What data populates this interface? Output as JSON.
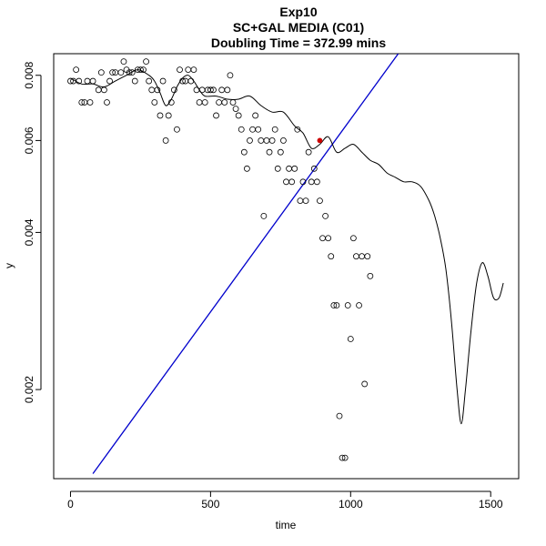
{
  "chart_data": {
    "type": "scatter",
    "title": "Exp10",
    "subtitle": "SC+GAL MEDIA (C01)",
    "subtitle2": "Doubling Time = 372.99 mins",
    "xlabel": "time",
    "ylabel": "y",
    "y_scale": "log",
    "xlim": [
      -60,
      1600
    ],
    "ylim": [
      0.00135,
      0.0088
    ],
    "x_ticks": [
      0,
      500,
      1000,
      1500
    ],
    "x_tick_labels": [
      "0",
      "500",
      "1000",
      "1500"
    ],
    "y_ticks": [
      0.002,
      0.004,
      0.006,
      0.008
    ],
    "y_tick_labels": [
      "0.002",
      "0.004",
      "0.006",
      "0.008"
    ],
    "grid": false,
    "colors": {
      "points": "#000000",
      "smooth": "#000000",
      "fit_line": "#0000cc",
      "highlight": "#cc0000"
    },
    "points": [
      [
        0,
        0.0078
      ],
      [
        10,
        0.0078
      ],
      [
        20,
        0.0082
      ],
      [
        30,
        0.0078
      ],
      [
        40,
        0.0071
      ],
      [
        50,
        0.0071
      ],
      [
        60,
        0.0078
      ],
      [
        70,
        0.0071
      ],
      [
        80,
        0.0078
      ],
      [
        100,
        0.0075
      ],
      [
        110,
        0.0081
      ],
      [
        120,
        0.0075
      ],
      [
        130,
        0.0071
      ],
      [
        140,
        0.0078
      ],
      [
        150,
        0.0081
      ],
      [
        160,
        0.0081
      ],
      [
        180,
        0.0081
      ],
      [
        190,
        0.0085
      ],
      [
        200,
        0.0082
      ],
      [
        210,
        0.0081
      ],
      [
        220,
        0.0081
      ],
      [
        230,
        0.0078
      ],
      [
        240,
        0.0082
      ],
      [
        250,
        0.0082
      ],
      [
        260,
        0.0082
      ],
      [
        270,
        0.0085
      ],
      [
        280,
        0.0078
      ],
      [
        290,
        0.0075
      ],
      [
        300,
        0.0071
      ],
      [
        310,
        0.0075
      ],
      [
        320,
        0.0067
      ],
      [
        330,
        0.0078
      ],
      [
        340,
        0.006
      ],
      [
        350,
        0.0067
      ],
      [
        360,
        0.0071
      ],
      [
        370,
        0.0075
      ],
      [
        380,
        0.0063
      ],
      [
        390,
        0.0082
      ],
      [
        400,
        0.0078
      ],
      [
        410,
        0.0078
      ],
      [
        420,
        0.0082
      ],
      [
        430,
        0.0078
      ],
      [
        440,
        0.0082
      ],
      [
        450,
        0.0075
      ],
      [
        460,
        0.0071
      ],
      [
        470,
        0.0075
      ],
      [
        480,
        0.0071
      ],
      [
        490,
        0.0075
      ],
      [
        500,
        0.0075
      ],
      [
        510,
        0.0075
      ],
      [
        520,
        0.0067
      ],
      [
        530,
        0.0071
      ],
      [
        540,
        0.0075
      ],
      [
        550,
        0.0071
      ],
      [
        560,
        0.0075
      ],
      [
        570,
        0.008
      ],
      [
        580,
        0.0071
      ],
      [
        590,
        0.0069
      ],
      [
        600,
        0.0067
      ],
      [
        610,
        0.0063
      ],
      [
        620,
        0.0057
      ],
      [
        630,
        0.0053
      ],
      [
        640,
        0.006
      ],
      [
        650,
        0.0063
      ],
      [
        660,
        0.0067
      ],
      [
        670,
        0.0063
      ],
      [
        680,
        0.006
      ],
      [
        690,
        0.0043
      ],
      [
        700,
        0.006
      ],
      [
        710,
        0.0057
      ],
      [
        720,
        0.006
      ],
      [
        730,
        0.0063
      ],
      [
        740,
        0.0053
      ],
      [
        750,
        0.0057
      ],
      [
        760,
        0.006
      ],
      [
        770,
        0.005
      ],
      [
        780,
        0.0053
      ],
      [
        790,
        0.005
      ],
      [
        800,
        0.0053
      ],
      [
        810,
        0.0063
      ],
      [
        820,
        0.0046
      ],
      [
        830,
        0.005
      ],
      [
        840,
        0.0046
      ],
      [
        850,
        0.0057
      ],
      [
        860,
        0.005
      ],
      [
        870,
        0.0053
      ],
      [
        880,
        0.005
      ],
      [
        890,
        0.0046
      ],
      [
        900,
        0.0039
      ],
      [
        910,
        0.0043
      ],
      [
        920,
        0.0039
      ],
      [
        930,
        0.0036
      ],
      [
        940,
        0.0029
      ],
      [
        950,
        0.0029
      ],
      [
        960,
        0.00178
      ],
      [
        970,
        0.00148
      ],
      [
        980,
        0.00148
      ],
      [
        990,
        0.0029
      ],
      [
        1000,
        0.0025
      ],
      [
        1010,
        0.0039
      ],
      [
        1020,
        0.0036
      ],
      [
        1030,
        0.0029
      ],
      [
        1040,
        0.0036
      ],
      [
        1050,
        0.00205
      ],
      [
        1060,
        0.0036
      ],
      [
        1070,
        0.0033
      ]
    ],
    "smooth_curve": [
      [
        0,
        0.0079
      ],
      [
        40,
        0.0077
      ],
      [
        80,
        0.0077
      ],
      [
        120,
        0.0076
      ],
      [
        160,
        0.0078
      ],
      [
        200,
        0.008
      ],
      [
        240,
        0.0082
      ],
      [
        280,
        0.008
      ],
      [
        300,
        0.0078
      ],
      [
        320,
        0.0074
      ],
      [
        340,
        0.007
      ],
      [
        360,
        0.0072
      ],
      [
        380,
        0.0076
      ],
      [
        400,
        0.0079
      ],
      [
        420,
        0.008
      ],
      [
        440,
        0.0078
      ],
      [
        460,
        0.0075
      ],
      [
        480,
        0.0073
      ],
      [
        520,
        0.0073
      ],
      [
        560,
        0.0072
      ],
      [
        600,
        0.0072
      ],
      [
        640,
        0.0073
      ],
      [
        680,
        0.007
      ],
      [
        720,
        0.0068
      ],
      [
        760,
        0.0068
      ],
      [
        800,
        0.0064
      ],
      [
        830,
        0.0062
      ],
      [
        860,
        0.0058
      ],
      [
        890,
        0.0059
      ],
      [
        920,
        0.0061
      ],
      [
        950,
        0.0057
      ],
      [
        980,
        0.0058
      ],
      [
        1010,
        0.0059
      ],
      [
        1040,
        0.0057
      ],
      [
        1070,
        0.0055
      ],
      [
        1100,
        0.0054
      ],
      [
        1130,
        0.0052
      ],
      [
        1160,
        0.0051
      ],
      [
        1190,
        0.005
      ],
      [
        1220,
        0.005
      ],
      [
        1250,
        0.0049
      ],
      [
        1280,
        0.0046
      ],
      [
        1300,
        0.0043
      ],
      [
        1320,
        0.0039
      ],
      [
        1340,
        0.0034
      ],
      [
        1360,
        0.0027
      ],
      [
        1380,
        0.002
      ],
      [
        1395,
        0.00172
      ],
      [
        1410,
        0.002
      ],
      [
        1430,
        0.0026
      ],
      [
        1450,
        0.0032
      ],
      [
        1470,
        0.0035
      ],
      [
        1490,
        0.0033
      ],
      [
        1510,
        0.003
      ],
      [
        1530,
        0.003
      ],
      [
        1545,
        0.0032
      ]
    ],
    "fit_line": {
      "x": [
        80,
        1170
      ],
      "y": [
        0.00138,
        0.0088
      ]
    },
    "highlight_point": [
      890,
      0.006
    ]
  }
}
